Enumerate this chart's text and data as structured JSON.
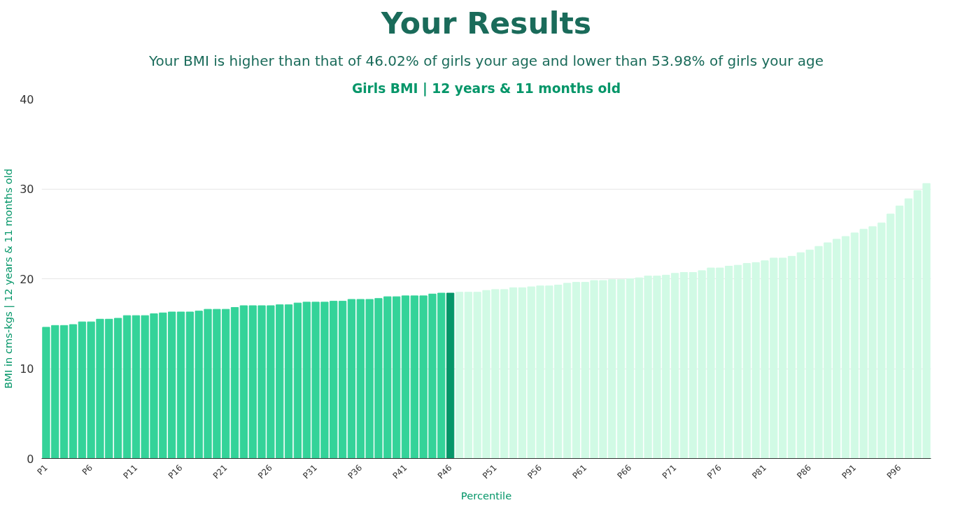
{
  "chart_data": {
    "type": "bar",
    "title": "Your Results",
    "subtitle": "Your BMI is higher than that of 46.02% of girls your age and lower than 53.98% of girls your age",
    "annotations": [
      "Girls BMI | 12 years & 11 months old"
    ],
    "xlabel": "Percentile",
    "ylabel": "BMI in cms-kgs | 12 years & 11 months old",
    "categories": [
      "P1",
      null,
      null,
      null,
      null,
      "P6",
      null,
      null,
      null,
      null,
      "P11",
      null,
      null,
      null,
      null,
      "P16",
      null,
      null,
      null,
      null,
      "P21",
      null,
      null,
      null,
      null,
      "P26",
      null,
      null,
      null,
      null,
      "P31",
      null,
      null,
      null,
      null,
      "P36",
      null,
      null,
      null,
      null,
      "P41",
      null,
      null,
      null,
      null,
      "P46",
      null,
      null,
      null,
      null,
      "P51",
      null,
      null,
      null,
      null,
      "P56",
      null,
      null,
      null,
      null,
      "P61",
      null,
      null,
      null,
      null,
      "P66",
      null,
      null,
      null,
      null,
      "P71",
      null,
      null,
      null,
      null,
      "P76",
      null,
      null,
      null,
      null,
      "P81",
      null,
      null,
      null,
      null,
      "P86",
      null,
      null,
      null,
      null,
      "P91",
      null,
      null,
      null,
      null,
      "P96",
      null,
      null,
      null
    ],
    "values": [
      14.6,
      14.8,
      14.8,
      14.9,
      15.2,
      15.2,
      15.5,
      15.5,
      15.6,
      15.9,
      15.9,
      15.9,
      16.1,
      16.2,
      16.3,
      16.3,
      16.3,
      16.4,
      16.6,
      16.6,
      16.6,
      16.8,
      17.0,
      17.0,
      17.0,
      17.0,
      17.1,
      17.1,
      17.3,
      17.4,
      17.4,
      17.4,
      17.5,
      17.5,
      17.7,
      17.7,
      17.7,
      17.8,
      18.0,
      18.0,
      18.1,
      18.1,
      18.1,
      18.3,
      18.4,
      18.4,
      18.5,
      18.5,
      18.5,
      18.7,
      18.8,
      18.8,
      19.0,
      19.0,
      19.1,
      19.2,
      19.2,
      19.3,
      19.5,
      19.6,
      19.6,
      19.8,
      19.8,
      19.9,
      19.9,
      20.0,
      20.1,
      20.3,
      20.3,
      20.4,
      20.6,
      20.7,
      20.7,
      20.9,
      21.2,
      21.2,
      21.4,
      21.5,
      21.7,
      21.8,
      22.0,
      22.3,
      22.3,
      22.5,
      22.9,
      23.2,
      23.6,
      24.0,
      24.4,
      24.7,
      25.1,
      25.5,
      25.8,
      26.2,
      27.2,
      28.1,
      28.9,
      29.8,
      30.6
    ],
    "colors": [
      "#34d399",
      "#34d399",
      "#34d399",
      "#34d399",
      "#34d399",
      "#34d399",
      "#34d399",
      "#34d399",
      "#34d399",
      "#34d399",
      "#34d399",
      "#34d399",
      "#34d399",
      "#34d399",
      "#34d399",
      "#34d399",
      "#34d399",
      "#34d399",
      "#34d399",
      "#34d399",
      "#34d399",
      "#34d399",
      "#34d399",
      "#34d399",
      "#34d399",
      "#34d399",
      "#34d399",
      "#34d399",
      "#34d399",
      "#34d399",
      "#34d399",
      "#34d399",
      "#34d399",
      "#34d399",
      "#34d399",
      "#34d399",
      "#34d399",
      "#34d399",
      "#34d399",
      "#34d399",
      "#34d399",
      "#34d399",
      "#34d399",
      "#34d399",
      "#34d399",
      "#059669",
      "#d1fae5",
      "#d1fae5",
      "#d1fae5",
      "#d1fae5",
      "#d1fae5",
      "#d1fae5",
      "#d1fae5",
      "#d1fae5",
      "#d1fae5",
      "#d1fae5",
      "#d1fae5",
      "#d1fae5",
      "#d1fae5",
      "#d1fae5",
      "#d1fae5",
      "#d1fae5",
      "#d1fae5",
      "#d1fae5",
      "#d1fae5",
      "#d1fae5",
      "#d1fae5",
      "#d1fae5",
      "#d1fae5",
      "#d1fae5",
      "#d1fae5",
      "#d1fae5",
      "#d1fae5",
      "#d1fae5",
      "#d1fae5",
      "#d1fae5",
      "#d1fae5",
      "#d1fae5",
      "#d1fae5",
      "#d1fae5",
      "#d1fae5",
      "#d1fae5",
      "#d1fae5",
      "#d1fae5",
      "#d1fae5",
      "#d1fae5",
      "#d1fae5",
      "#d1fae5",
      "#d1fae5",
      "#d1fae5",
      "#d1fae5",
      "#d1fae5",
      "#d1fae5",
      "#d1fae5",
      "#d1fae5",
      "#d1fae5",
      "#d1fae5",
      "#d1fae5",
      "#d1fae5"
    ],
    "ylim": [
      0,
      40
    ],
    "yticks": [
      0,
      10,
      20,
      30,
      40
    ],
    "grid": "y"
  }
}
